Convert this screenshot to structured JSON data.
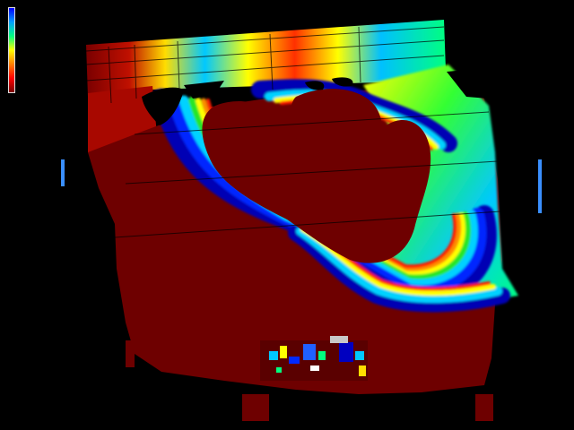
{
  "viewer": {
    "overlay_text": "",
    "colorbar": {
      "top_color": "#1010ff",
      "stops": [
        "#0000ff",
        "#00a0ff",
        "#00ff80",
        "#ffff00",
        "#ff8000",
        "#ff0000",
        "#7a0000"
      ],
      "bottom_color": "#7a0000"
    },
    "palette": {
      "background": "#000000",
      "base_mesh": "#6e0000",
      "band_red": "#ff1a00",
      "band_orange": "#ff8c00",
      "band_yellow": "#ffff00",
      "band_green": "#28e628",
      "band_cyan": "#00d2ff",
      "band_blue": "#0028ff",
      "band_navy": "#0000b4",
      "grid_line": "#000000"
    },
    "icons": [
      "colorbar-icon"
    ]
  }
}
